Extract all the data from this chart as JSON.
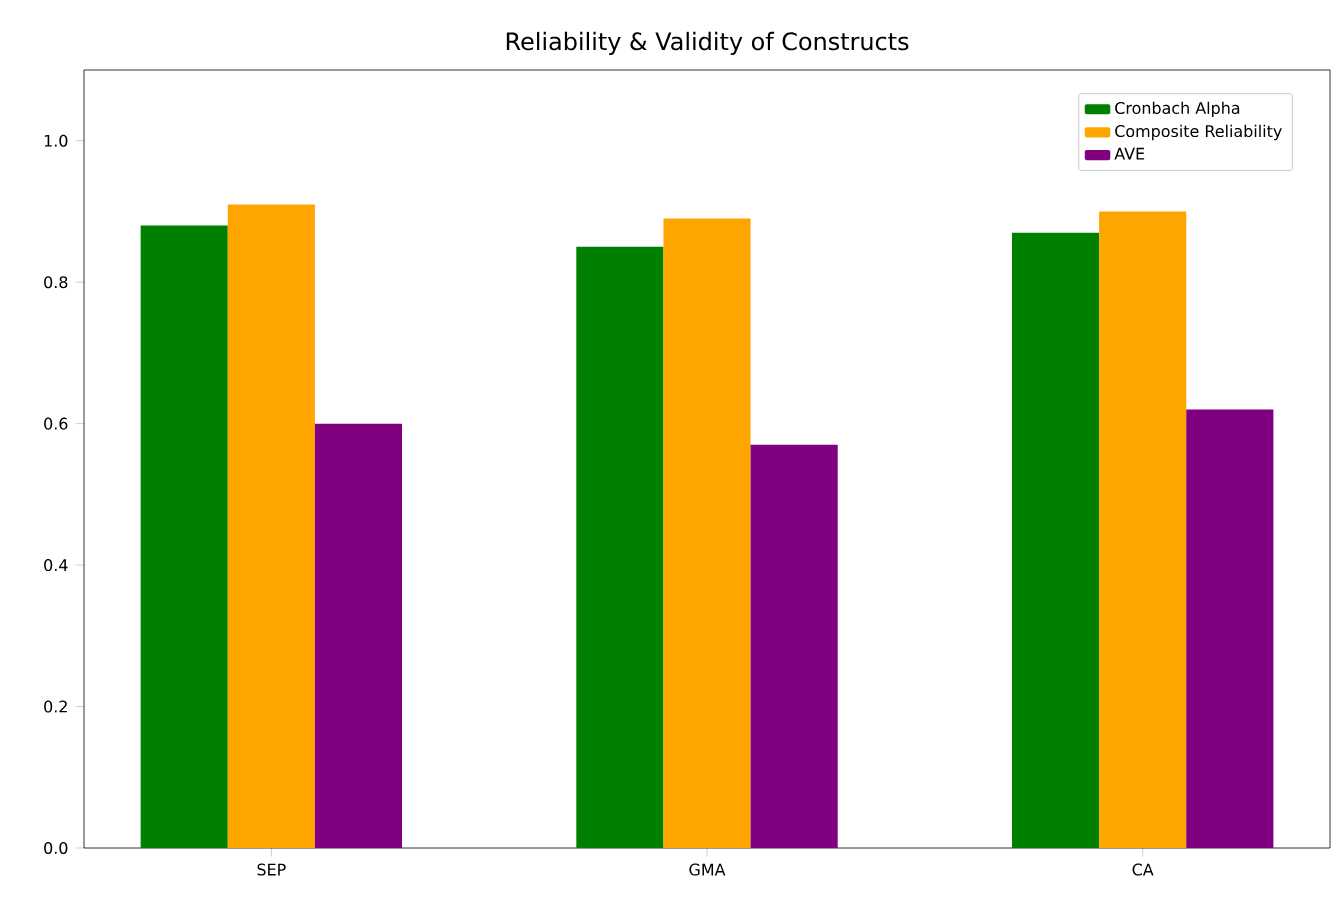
{
  "chart_data": {
    "type": "bar",
    "title": "Reliability & Validity of Constructs",
    "categories": [
      "SEP",
      "GMA",
      "CA"
    ],
    "series": [
      {
        "name": "Cronbach Alpha",
        "color": "#008000",
        "values": [
          0.88,
          0.85,
          0.87
        ]
      },
      {
        "name": "Composite Reliability",
        "color": "#ffa500",
        "values": [
          0.91,
          0.89,
          0.9
        ]
      },
      {
        "name": "AVE",
        "color": "#800080",
        "values": [
          0.6,
          0.57,
          0.62
        ]
      }
    ],
    "ylim": [
      0,
      1.1
    ],
    "yticks": [
      {
        "value": 0,
        "label": "0.0"
      },
      {
        "value": 0.2,
        "label": "0.2"
      },
      {
        "value": 0.4,
        "label": "0.4"
      },
      {
        "value": 0.6,
        "label": "0.6"
      },
      {
        "value": 0.8,
        "label": "0.8"
      },
      {
        "value": 1.0,
        "label": "1.0"
      }
    ],
    "grid": false,
    "legend": "top right"
  }
}
